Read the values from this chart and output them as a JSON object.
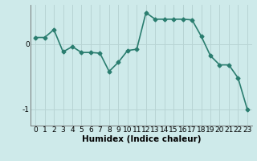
{
  "x": [
    0,
    1,
    2,
    3,
    4,
    5,
    6,
    7,
    8,
    9,
    10,
    11,
    12,
    13,
    14,
    15,
    16,
    17,
    18,
    19,
    20,
    21,
    22,
    23
  ],
  "y": [
    0.1,
    0.1,
    0.22,
    -0.12,
    -0.04,
    -0.13,
    -0.13,
    -0.14,
    -0.42,
    -0.28,
    -0.1,
    -0.08,
    0.48,
    0.38,
    0.38,
    0.38,
    0.38,
    0.37,
    0.12,
    -0.18,
    -0.32,
    -0.32,
    -0.52,
    -1.0
  ],
  "line_color": "#2a7d6f",
  "marker": "D",
  "marker_size": 2.5,
  "bg_color": "#ceeaea",
  "grid_color": "#b8d4d4",
  "xlabel": "Humidex (Indice chaleur)",
  "xlim": [
    -0.5,
    23.5
  ],
  "ylim": [
    -1.25,
    0.6
  ],
  "yticks": [
    -1,
    0
  ],
  "xticks": [
    0,
    1,
    2,
    3,
    4,
    5,
    6,
    7,
    8,
    9,
    10,
    11,
    12,
    13,
    14,
    15,
    16,
    17,
    18,
    19,
    20,
    21,
    22,
    23
  ],
  "xlabel_fontsize": 7.5,
  "tick_fontsize": 6.5,
  "line_width": 1.2
}
